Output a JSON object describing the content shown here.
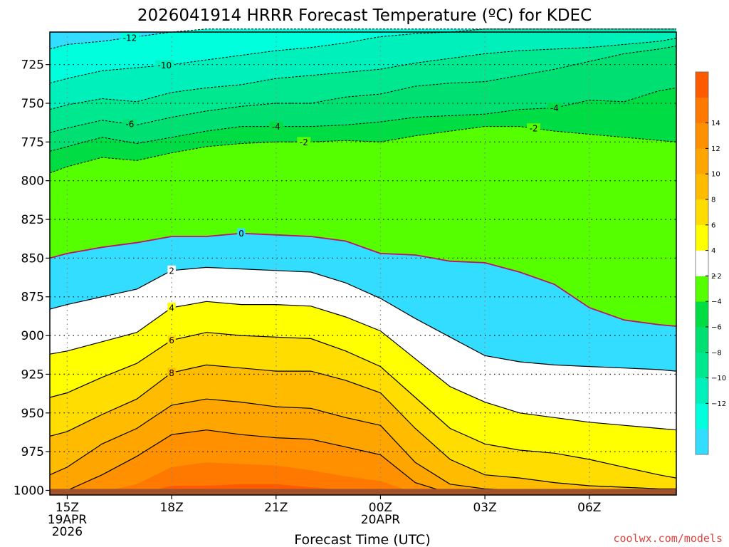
{
  "chart_data": {
    "type": "contour",
    "title": "2026041914 HRRR Forecast Temperature (ºC) for KDEC",
    "xlabel": "Forecast Time (UTC)",
    "ylabel": "",
    "credit": "coolwx.com/models",
    "credit_color": "#e0403c",
    "x_ticks": [
      {
        "hour": 1,
        "lines": [
          "15Z",
          "19APR",
          "2026"
        ]
      },
      {
        "hour": 4,
        "lines": [
          "18Z"
        ]
      },
      {
        "hour": 7,
        "lines": [
          "21Z"
        ]
      },
      {
        "hour": 10,
        "lines": [
          "00Z",
          "20APR"
        ]
      },
      {
        "hour": 13,
        "lines": [
          "03Z"
        ]
      },
      {
        "hour": 16,
        "lines": [
          "06Z"
        ]
      }
    ],
    "xlim": [
      0.5,
      18.5
    ],
    "y_axis": "pressure (hPa), reversed",
    "ylim": [
      1003,
      704
    ],
    "y_ticks": [
      725,
      750,
      775,
      800,
      825,
      850,
      875,
      900,
      925,
      950,
      975,
      1000
    ],
    "grid": "dotted",
    "colorbar": {
      "levels": [
        -14,
        -12,
        -10,
        -8,
        -6,
        -4,
        -2,
        2,
        4,
        6,
        8,
        10,
        12,
        14,
        16
      ],
      "colors": [
        "#33ddff",
        "#00ffdd",
        "#00f0bb",
        "#00e88f",
        "#00e072",
        "#00dd44",
        "#55ff00",
        "#ffffff",
        "#ffff00",
        "#ffdd00",
        "#ffbb00",
        "#ffa500",
        "#ff9000",
        "#ff7800",
        "#ff5a00"
      ],
      "labels": [
        -12,
        -10,
        -8,
        -6,
        -4,
        -2,
        2,
        4,
        6,
        8,
        10,
        12,
        14
      ]
    },
    "x": [
      0.5,
      1,
      2,
      3,
      4,
      5,
      6,
      7,
      8,
      9,
      10,
      11,
      12,
      13,
      14,
      15,
      16,
      17,
      18,
      18.5
    ],
    "isotherms": [
      {
        "value": -12,
        "p": [
          715,
          712,
          710,
          707,
          704,
          702,
          702,
          702,
          702,
          702,
          702,
          702,
          702,
          702,
          702,
          702,
          702,
          702,
          702,
          702
        ]
      },
      {
        "value": -10,
        "p": [
          737,
          734,
          729,
          727,
          725,
          722,
          719,
          716,
          714,
          711,
          707,
          705,
          704,
          702,
          702,
          702,
          702,
          702,
          702,
          702
        ]
      },
      {
        "value": -8,
        "p": [
          754,
          751,
          747,
          749,
          743,
          740,
          738,
          734,
          732,
          730,
          728,
          724,
          721,
          718,
          716,
          715,
          714,
          712,
          710,
          708
        ]
      },
      {
        "value": -6,
        "p": [
          769,
          766,
          761,
          764,
          759,
          755,
          752,
          750,
          750,
          746,
          744,
          739,
          737,
          736,
          732,
          728,
          723,
          718,
          715,
          713
        ]
      },
      {
        "value": -4,
        "p": [
          781,
          778,
          772,
          776,
          772,
          768,
          765,
          765,
          765,
          764,
          762,
          759,
          758,
          757,
          754,
          753,
          748,
          749,
          742,
          740
        ]
      },
      {
        "value": -2,
        "p": [
          795,
          791,
          785,
          787,
          782,
          778,
          776,
          775,
          775,
          774,
          775,
          771,
          768,
          765,
          765,
          768,
          770,
          772,
          774,
          775
        ]
      },
      {
        "value": 0,
        "p": [
          850,
          847,
          843,
          840,
          836,
          836,
          834,
          835,
          836,
          839,
          847,
          848,
          852,
          853,
          859,
          867,
          882,
          890,
          893,
          894
        ]
      },
      {
        "value": 2,
        "p": [
          883,
          880,
          875,
          870,
          858,
          856,
          857,
          858,
          859,
          866,
          876,
          889,
          901,
          913,
          917,
          919,
          920,
          921,
          922,
          923
        ]
      },
      {
        "value": 4,
        "p": [
          912,
          910,
          904,
          898,
          882,
          878,
          880,
          880,
          881,
          888,
          897,
          915,
          933,
          943,
          950,
          953,
          956,
          958,
          960,
          961
        ]
      },
      {
        "value": 6,
        "p": [
          940,
          937,
          927,
          918,
          903,
          898,
          900,
          901,
          902,
          910,
          920,
          940,
          960,
          970,
          974,
          976,
          980,
          985,
          990,
          992
        ]
      },
      {
        "value": 8,
        "p": [
          965,
          962,
          951,
          941,
          924,
          919,
          921,
          923,
          923,
          929,
          937,
          960,
          980,
          990,
          992,
          995,
          997,
          998,
          999,
          999
        ]
      },
      {
        "value": 10,
        "p": [
          990,
          985,
          970,
          960,
          945,
          941,
          943,
          946,
          947,
          953,
          958,
          982,
          996,
          999,
          1000,
          1001,
          1002,
          1002,
          1002,
          1002
        ]
      },
      {
        "value": 12,
        "p": [
          1003,
          1000,
          990,
          978,
          964,
          961,
          964,
          966,
          967,
          972,
          977,
          995,
          1002,
          1002,
          1002,
          1002,
          1002,
          1002,
          1002,
          1002
        ]
      },
      {
        "value": 14,
        "p": [
          1003,
          1003,
          1001,
          996,
          985,
          982,
          983,
          984,
          987,
          991,
          994,
          1002,
          1002,
          1002,
          1002,
          1002,
          1002,
          1002,
          1002,
          1002
        ]
      },
      {
        "value": 16,
        "p": [
          1003,
          1003,
          1003,
          1003,
          997,
          997,
          996,
          996,
          998,
          1000,
          1002,
          1003,
          1003,
          1003,
          1003,
          1003,
          1003,
          1003,
          1003,
          1003
        ]
      }
    ],
    "contour_labels": [
      {
        "value": -12,
        "x": 2.8
      },
      {
        "value": -10,
        "x": 3.8
      },
      {
        "value": -6,
        "x": 2.8
      },
      {
        "value": -4,
        "x": 7.0
      },
      {
        "value": -4,
        "x": 15.0
      },
      {
        "value": -2,
        "x": 7.8
      },
      {
        "value": -2,
        "x": 14.4
      },
      {
        "value": 0,
        "x": 6.0
      },
      {
        "value": 2,
        "x": 4.0
      },
      {
        "value": 4,
        "x": 4.0
      },
      {
        "value": 6,
        "x": 4.0
      },
      {
        "value": 8,
        "x": 4.0
      }
    ],
    "ground_color": "#a0522d"
  }
}
